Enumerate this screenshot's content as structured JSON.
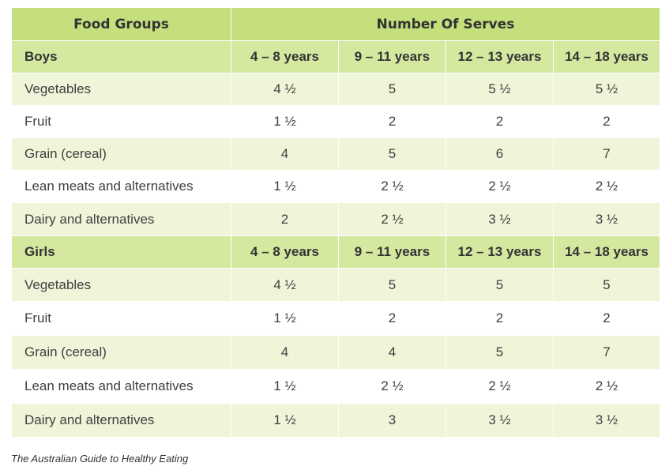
{
  "table": {
    "headers": {
      "food_groups": "Food Groups",
      "number_of_serves": "Number Of Serves"
    },
    "sections": [
      {
        "label": "Boys",
        "age_groups": [
          "4 – 8 years",
          "9 – 11 years",
          "12 – 13 years",
          "14 – 18 years"
        ],
        "rows": [
          {
            "food": "Vegetables",
            "values": [
              "4 ½",
              "5",
              "5 ½",
              "5 ½"
            ]
          },
          {
            "food": "Fruit",
            "values": [
              "1 ½",
              "2",
              "2",
              "2"
            ]
          },
          {
            "food": "Grain (cereal)",
            "values": [
              "4",
              "5",
              "6",
              "7"
            ]
          },
          {
            "food": "Lean meats and alternatives",
            "values": [
              "1 ½",
              "2 ½",
              "2 ½",
              "2 ½"
            ]
          },
          {
            "food": "Dairy and alternatives",
            "values": [
              "2",
              "2 ½",
              "3 ½",
              "3 ½"
            ]
          }
        ]
      },
      {
        "label": "Girls",
        "age_groups": [
          "4 – 8 years",
          "9 – 11 years",
          "12 – 13 years",
          "14 – 18 years"
        ],
        "rows": [
          {
            "food": "Vegetables",
            "values": [
              "4 ½",
              "5",
              "5",
              "5"
            ]
          },
          {
            "food": "Fruit",
            "values": [
              "1 ½",
              "2",
              "2",
              "2"
            ]
          },
          {
            "food": "Grain (cereal)",
            "values": [
              "4",
              "4",
              "5",
              "7"
            ]
          },
          {
            "food": "Lean meats and alternatives",
            "values": [
              "1 ½",
              "2 ½",
              "2 ½",
              "2 ½"
            ]
          },
          {
            "food": "Dairy and alternatives",
            "values": [
              "1 ½",
              "3",
              "3 ½",
              "3 ½"
            ]
          }
        ]
      }
    ]
  },
  "caption": "The Australian Guide to Healthy Eating",
  "colors": {
    "header_green": "#c5df7c",
    "section_green": "#d5e8a0",
    "row_shade": "#eef5d8",
    "border": "#b7d47a"
  }
}
